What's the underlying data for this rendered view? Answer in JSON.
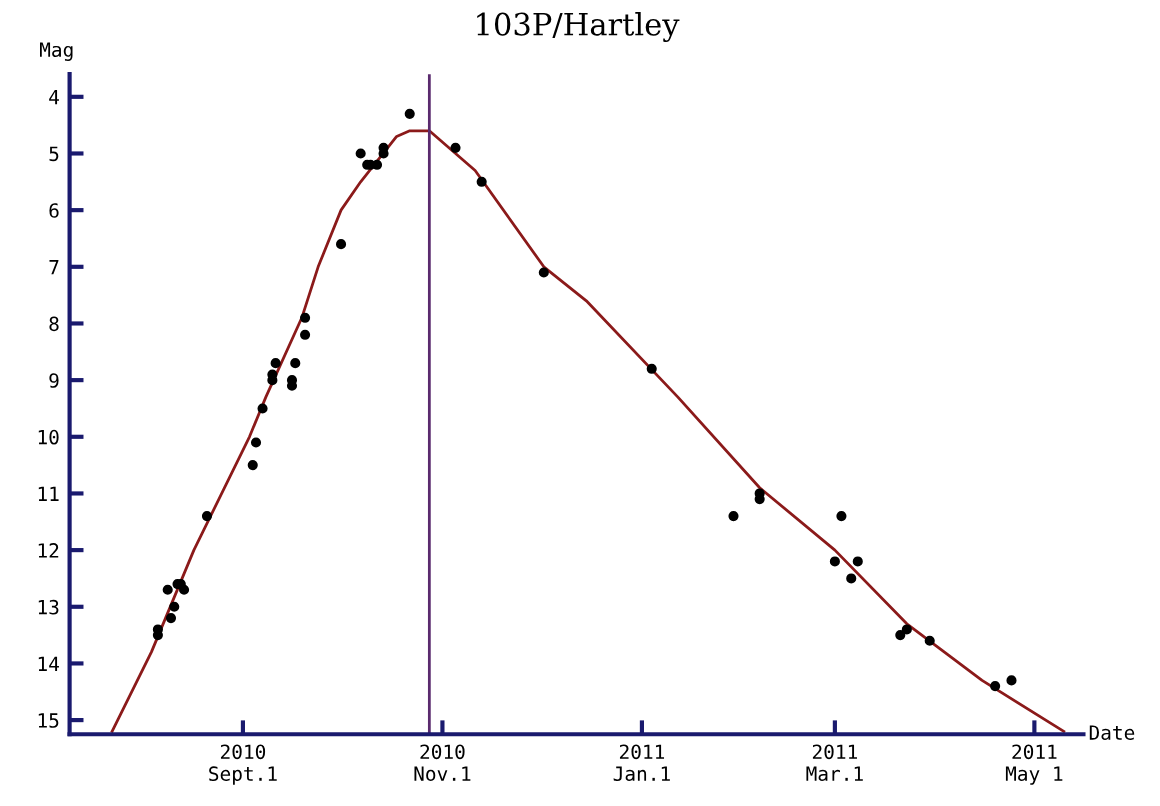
{
  "chart_data": {
    "type": "scatter",
    "title": "103P/Hartley",
    "xlabel": "Date",
    "ylabel": "Mag",
    "xlim": [
      "2010-07-10",
      "2011-05-16"
    ],
    "ylim": [
      15.25,
      3.6
    ],
    "xticks": [
      {
        "value": "2010-09-01",
        "label": "2010\nSept.1"
      },
      {
        "value": "2010-11-01",
        "label": "2010\nNov.1"
      },
      {
        "value": "2011-01-01",
        "label": "2011\nJan.1"
      },
      {
        "value": "2011-03-01",
        "label": "2011\nMar.1"
      },
      {
        "value": "2011-05-01",
        "label": "2011\nMay 1"
      }
    ],
    "yticks": [
      4,
      5,
      6,
      7,
      8,
      9,
      10,
      11,
      12,
      13,
      14,
      15
    ],
    "grid": false,
    "legend": false,
    "marker": "circle",
    "ref_lines": [
      {
        "axis": "x",
        "value": "2010-10-28",
        "color": "#5a2a6e",
        "line_style": "solid"
      }
    ],
    "series": [
      {
        "color": "#000000",
        "x": [
          "2010-08-06",
          "2010-08-06",
          "2010-08-09",
          "2010-08-10",
          "2010-08-11",
          "2010-08-12",
          "2010-08-13",
          "2010-08-14",
          "2010-08-21",
          "2010-09-04",
          "2010-09-05",
          "2010-09-07",
          "2010-09-10",
          "2010-09-10",
          "2010-09-11",
          "2010-09-16",
          "2010-09-16",
          "2010-09-17",
          "2010-09-20",
          "2010-09-20",
          "2010-10-01",
          "2010-10-07",
          "2010-10-09",
          "2010-10-10",
          "2010-10-12",
          "2010-10-14",
          "2010-10-14",
          "2010-10-22",
          "2010-11-05",
          "2010-11-13",
          "2010-12-02",
          "2011-01-04",
          "2011-01-29",
          "2011-02-06",
          "2011-02-06",
          "2011-03-01",
          "2011-03-03",
          "2011-03-06",
          "2011-03-08",
          "2011-03-21",
          "2011-03-23",
          "2011-03-30",
          "2011-04-19",
          "2011-04-24"
        ],
        "values": [
          13.4,
          13.5,
          12.7,
          13.2,
          13.0,
          12.6,
          12.6,
          12.7,
          11.4,
          10.5,
          10.1,
          9.5,
          8.9,
          9.0,
          8.7,
          9.0,
          9.1,
          8.7,
          7.9,
          8.2,
          6.6,
          5.0,
          5.2,
          5.2,
          5.2,
          4.9,
          5.0,
          4.3,
          4.9,
          5.5,
          7.1,
          8.8,
          11.4,
          11.0,
          11.1,
          12.2,
          11.4,
          12.5,
          12.2,
          13.5,
          13.4,
          13.6,
          14.4,
          14.3
        ]
      },
      {
        "type": "line",
        "color": "#8b1a1a",
        "marker": "none",
        "line_style": "solid",
        "x": [
          "2010-07-23",
          "2010-08-04",
          "2010-08-17",
          "2010-09-03",
          "2010-09-08",
          "2010-09-19",
          "2010-09-24",
          "2010-10-01",
          "2010-10-07",
          "2010-10-18",
          "2010-10-22",
          "2010-10-28",
          "2010-11-11",
          "2010-12-02",
          "2010-12-15",
          "2011-01-12",
          "2011-02-06",
          "2011-03-01",
          "2011-03-23",
          "2011-04-15",
          "2011-05-10"
        ],
        "values": [
          15.2,
          13.8,
          12.0,
          10.0,
          9.3,
          7.9,
          7.0,
          6.0,
          5.5,
          4.7,
          4.6,
          4.6,
          5.3,
          7.0,
          7.6,
          9.3,
          10.9,
          12.0,
          13.3,
          14.3,
          15.2
        ]
      }
    ]
  }
}
